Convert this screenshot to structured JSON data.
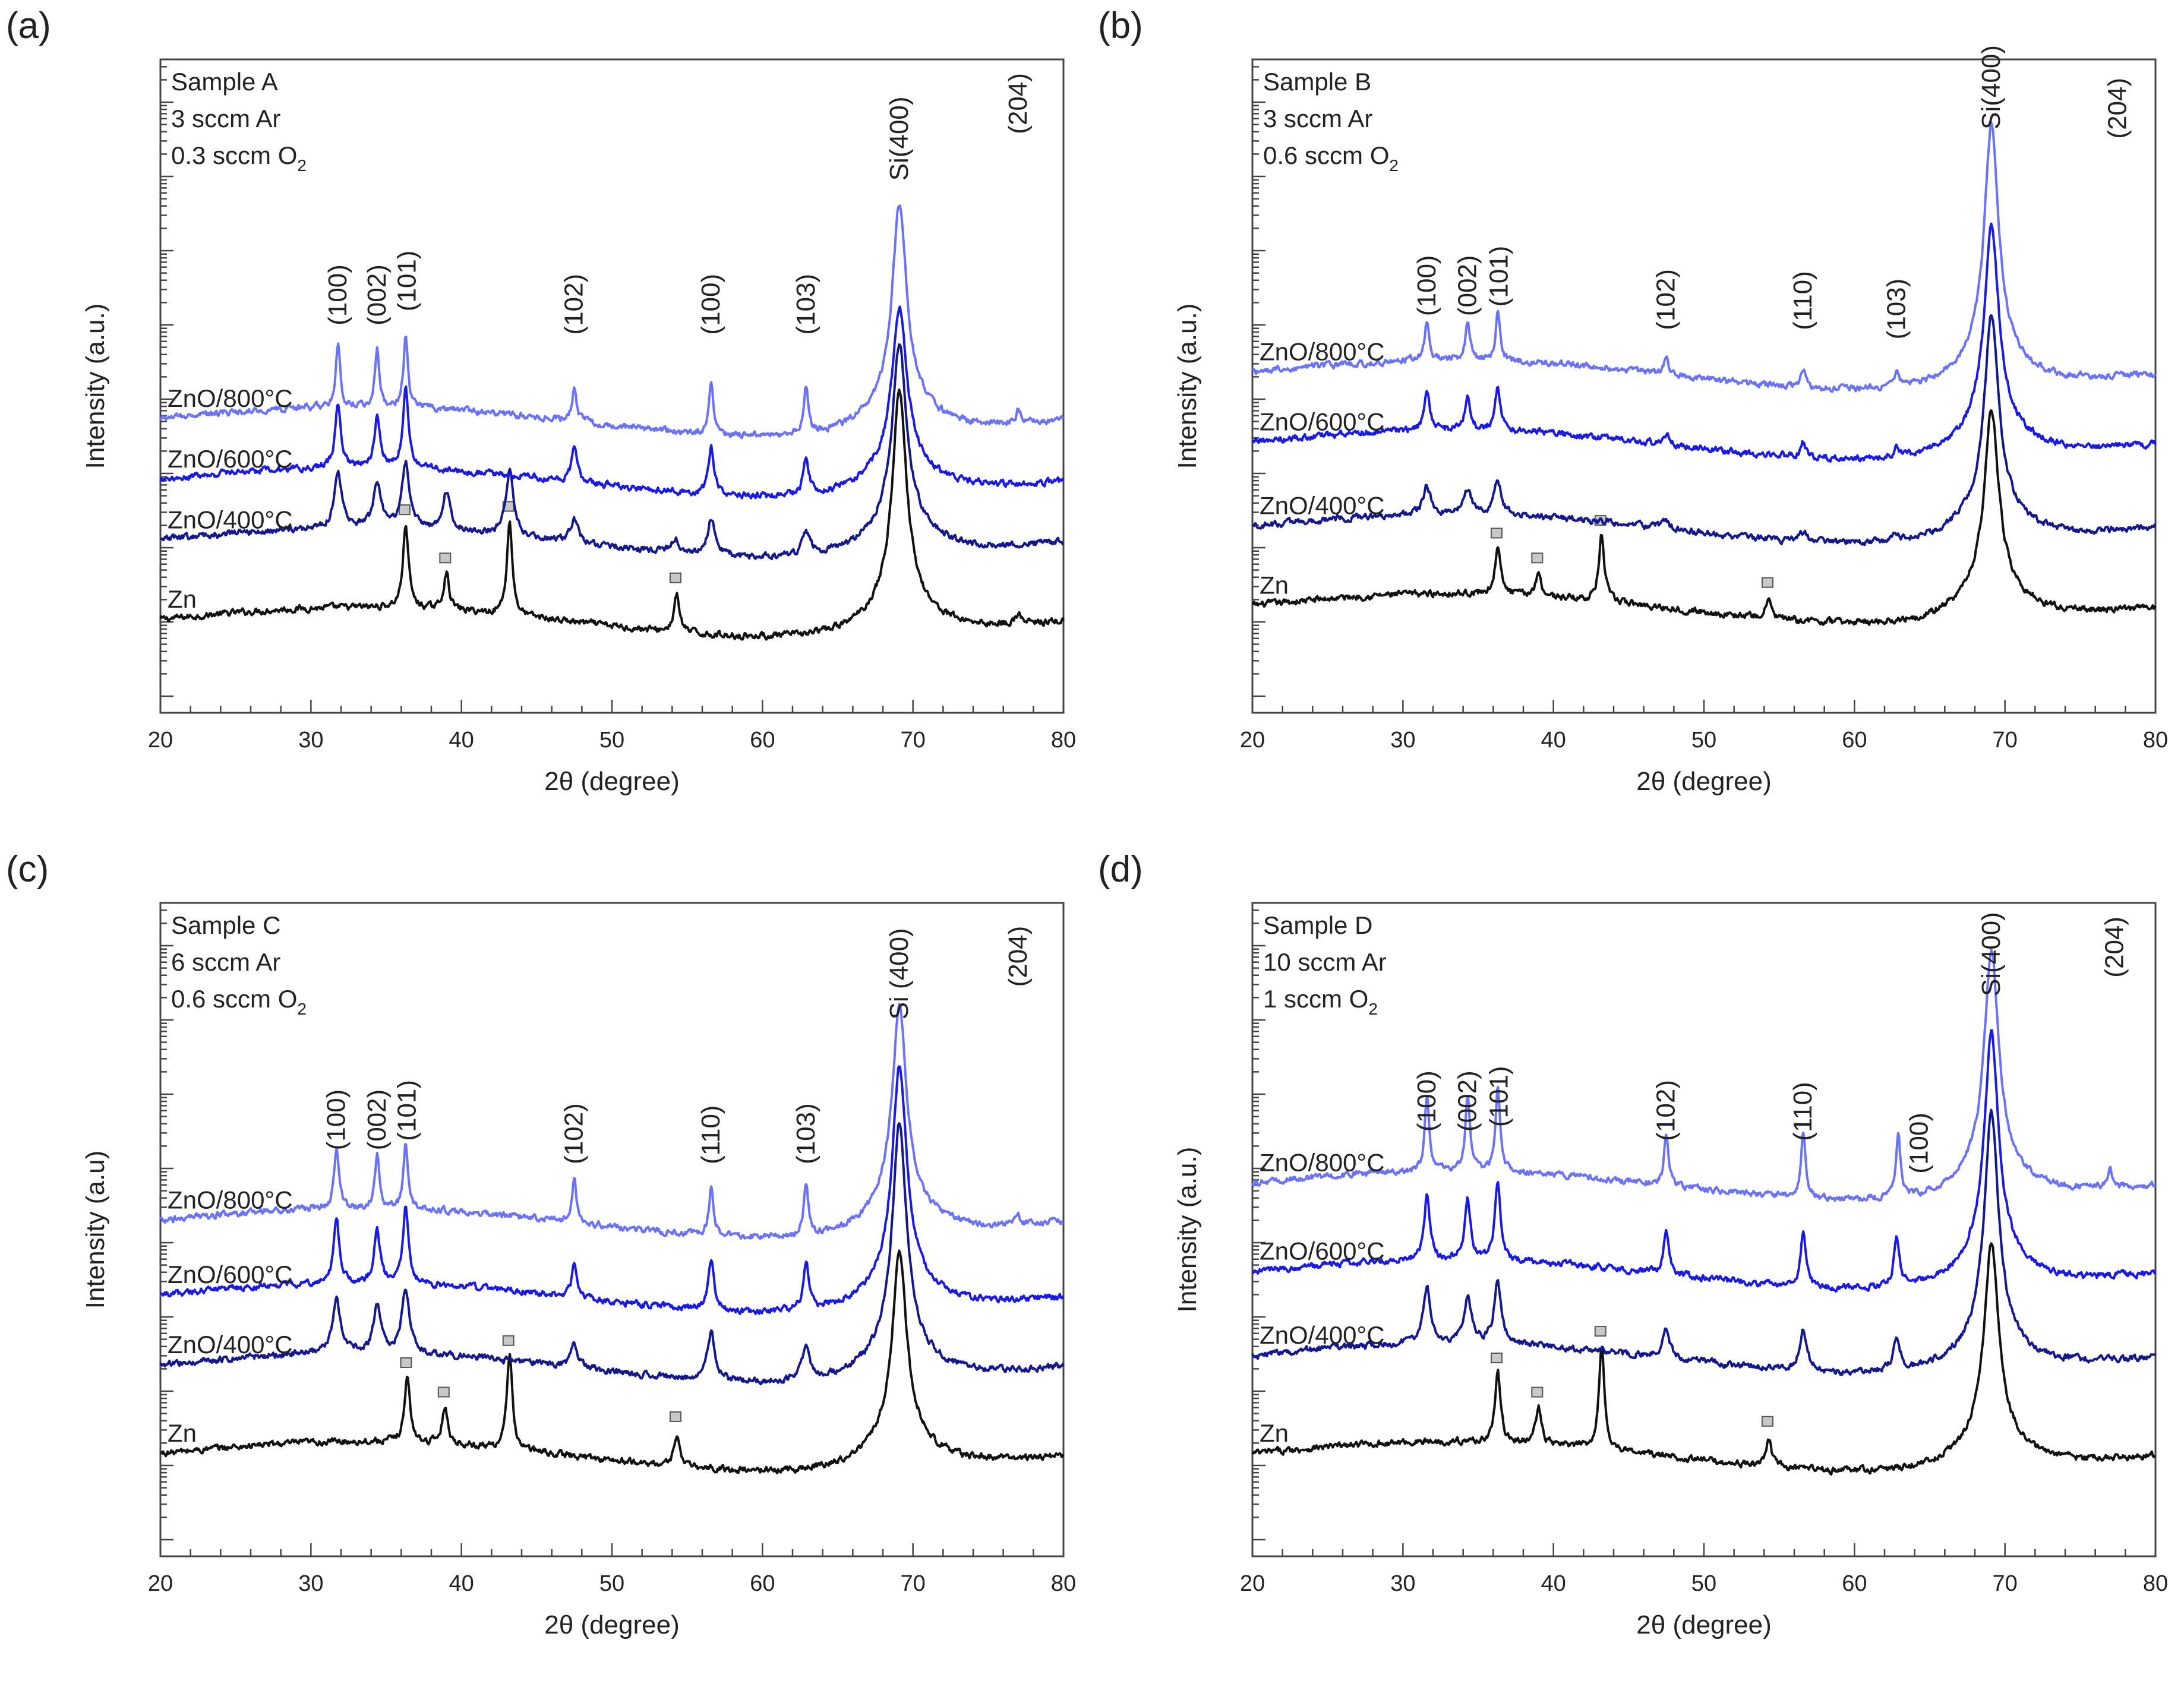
{
  "colors": {
    "zn": "#111111",
    "zno400": "#13188e",
    "zno600": "#1a1ae6",
    "zno800": "#6a72f8",
    "frame": "#444444",
    "marker_fill": "#c8c8c8",
    "marker_stroke": "#555555"
  },
  "chart_data": [
    {
      "type": "line",
      "panel_label": "(a)",
      "sample_lines": [
        "Sample A",
        "3 sccm Ar",
        "0.3 sccm O",
        "2"
      ],
      "xlabel": "2θ (degree)",
      "ylabel": "Intensity (a.u.)",
      "xlim": [
        20,
        80
      ],
      "xticks": [
        "20",
        "30",
        "40",
        "50",
        "60",
        "70",
        "80"
      ],
      "yscale": "log (offset, unlabeled)",
      "series": [
        {
          "name": "Zn",
          "color_key": "zn",
          "baseline": [
            20,
            78
          ],
          "peaks": [
            [
              36.3,
              18
            ],
            [
              39.0,
              8
            ],
            [
              43.2,
              20
            ],
            [
              54.3,
              8
            ],
            [
              69.1,
              44
            ],
            [
              77.0,
              2
            ]
          ],
          "markers": [
            36.3,
            39.0,
            43.2,
            54.3
          ]
        },
        {
          "name": "ZnO/400°C",
          "color_key": "zno400",
          "baseline": [
            37,
            92
          ],
          "peaks": [
            [
              31.8,
              12
            ],
            [
              34.4,
              9
            ],
            [
              36.3,
              14
            ],
            [
              39.0,
              8
            ],
            [
              43.2,
              14
            ],
            [
              47.5,
              5
            ],
            [
              54.2,
              3
            ],
            [
              56.6,
              8
            ],
            [
              62.9,
              5
            ],
            [
              69.1,
              37
            ]
          ]
        },
        {
          "name": "ZnO/600°C",
          "color_key": "zno600",
          "baseline": [
            50,
            105
          ],
          "peaks": [
            [
              31.8,
              14
            ],
            [
              34.4,
              11
            ],
            [
              36.3,
              17
            ],
            [
              47.5,
              8
            ],
            [
              56.6,
              10
            ],
            [
              62.9,
              8
            ],
            [
              69.1,
              32
            ]
          ]
        },
        {
          "name": "ZnO/800°C",
          "color_key": "zno800",
          "baseline": [
            63,
            117
          ],
          "peaks": [
            [
              31.8,
              13
            ],
            [
              34.4,
              12
            ],
            [
              36.3,
              15
            ],
            [
              47.5,
              7
            ],
            [
              56.6,
              11
            ],
            [
              62.9,
              10
            ],
            [
              69.1,
              41
            ],
            [
              77.0,
              3
            ]
          ]
        }
      ],
      "annotations": [
        {
          "text": "(100)",
          "x": 31.8,
          "level": 83
        },
        {
          "text": "(002)",
          "x": 34.4,
          "level": 83
        },
        {
          "text": "(101)",
          "x": 36.4,
          "level": 86
        },
        {
          "text": "(102)",
          "x": 47.5,
          "level": 81
        },
        {
          "text": "(100)",
          "x": 56.6,
          "level": 81
        },
        {
          "text": "(103)",
          "x": 62.9,
          "level": 81
        },
        {
          "text": "Si(400)",
          "x": 69.1,
          "level": 114
        },
        {
          "text": "(204)",
          "x": 77.0,
          "level": 124
        }
      ]
    },
    {
      "type": "line",
      "panel_label": "(b)",
      "sample_lines": [
        "Sample B",
        "3 sccm Ar",
        "0.6 sccm O",
        "2"
      ],
      "xlabel": "2θ (degree)",
      "ylabel": "Intensity (a.u.)",
      "xlim": [
        20,
        80
      ],
      "xticks": [
        "20",
        "30",
        "40",
        "50",
        "60",
        "70",
        "80"
      ],
      "yscale": "log (offset, unlabeled)",
      "series": [
        {
          "name": "Zn",
          "color_key": "zn",
          "baseline": [
            23,
            78
          ],
          "peaks": [
            [
              36.3,
              10
            ],
            [
              39.0,
              5
            ],
            [
              43.2,
              14
            ],
            [
              54.3,
              4
            ],
            [
              69.1,
              37
            ]
          ],
          "markers": [
            36.3,
            39.0,
            43.2,
            54.3
          ]
        },
        {
          "name": "ZnO/400°C",
          "color_key": "zno400",
          "baseline": [
            40,
            93
          ],
          "peaks": [
            [
              31.6,
              6
            ],
            [
              34.3,
              5
            ],
            [
              36.3,
              7
            ],
            [
              47.5,
              1.5
            ],
            [
              56.6,
              2
            ],
            [
              62.8,
              1.5
            ],
            [
              69.1,
              40
            ]
          ]
        },
        {
          "name": "ZnO/600°C",
          "color_key": "zno600",
          "baseline": [
            58,
            105
          ],
          "peaks": [
            [
              31.6,
              8
            ],
            [
              34.3,
              7
            ],
            [
              36.3,
              9
            ],
            [
              47.5,
              2
            ],
            [
              56.6,
              3
            ],
            [
              62.8,
              2
            ],
            [
              69.1,
              42
            ]
          ]
        },
        {
          "name": "ZnO/800°C",
          "color_key": "zno800",
          "baseline": [
            73,
            119
          ],
          "peaks": [
            [
              31.6,
              8
            ],
            [
              34.3,
              8
            ],
            [
              36.3,
              10
            ],
            [
              47.5,
              4
            ],
            [
              56.6,
              4
            ],
            [
              62.8,
              3
            ],
            [
              69.1,
              48
            ],
            [
              77.5,
              1
            ]
          ]
        }
      ],
      "annotations": [
        {
          "text": "(100)",
          "x": 31.6,
          "level": 85
        },
        {
          "text": "(002)",
          "x": 34.3,
          "level": 85
        },
        {
          "text": "(101)",
          "x": 36.4,
          "level": 87
        },
        {
          "text": "(102)",
          "x": 47.5,
          "level": 82
        },
        {
          "text": "(110)",
          "x": 56.6,
          "level": 82
        },
        {
          "text": "(103)",
          "x": 62.8,
          "level": 80
        },
        {
          "text": "Si(400)",
          "x": 69.1,
          "level": 125
        },
        {
          "text": "(204)",
          "x": 77.5,
          "level": 123
        }
      ]
    },
    {
      "type": "line",
      "panel_label": "(c)",
      "sample_lines": [
        "Sample C",
        "6 sccm Ar",
        "0.6 sccm O",
        "2"
      ],
      "xlabel": "2θ (degree)",
      "ylabel": "Intensity (a.u)",
      "xlim": [
        20,
        80
      ],
      "xticks": [
        "20",
        "30",
        "40",
        "50",
        "60",
        "70",
        "80"
      ],
      "yscale": "log (offset, unlabeled)",
      "series": [
        {
          "name": "Zn",
          "color_key": "zn",
          "baseline": [
            22,
            78
          ],
          "peaks": [
            [
              36.4,
              14
            ],
            [
              38.9,
              8
            ],
            [
              43.2,
              20
            ],
            [
              54.3,
              7
            ],
            [
              69.1,
              38
            ]
          ],
          "markers": [
            36.4,
            38.9,
            43.2,
            54.3
          ]
        },
        {
          "name": "ZnO/400°C",
          "color_key": "zno400",
          "baseline": [
            41,
            93
          ],
          "peaks": [
            [
              31.7,
              12
            ],
            [
              34.4,
              10
            ],
            [
              36.3,
              14
            ],
            [
              47.5,
              5
            ],
            [
              56.6,
              10
            ],
            [
              62.9,
              7
            ],
            [
              69.1,
              47
            ]
          ]
        },
        {
          "name": "ZnO/600°C",
          "color_key": "zno600",
          "baseline": [
            56,
            108
          ],
          "peaks": [
            [
              31.7,
              14
            ],
            [
              34.4,
              12
            ],
            [
              36.3,
              16
            ],
            [
              47.5,
              7
            ],
            [
              56.6,
              11
            ],
            [
              62.9,
              10
            ],
            [
              69.1,
              44
            ]
          ]
        },
        {
          "name": "ZnO/800°C",
          "color_key": "zno800",
          "baseline": [
            72,
            117
          ],
          "peaks": [
            [
              31.7,
              13
            ],
            [
              34.4,
              11
            ],
            [
              36.3,
              14
            ],
            [
              47.5,
              9
            ],
            [
              56.6,
              11
            ],
            [
              62.9,
              11
            ],
            [
              69.1,
              41
            ],
            [
              77.0,
              2
            ]
          ]
        }
      ],
      "annotations": [
        {
          "text": "(100)",
          "x": 31.7,
          "level": 87
        },
        {
          "text": "(002)",
          "x": 34.4,
          "level": 87
        },
        {
          "text": "(101)",
          "x": 36.4,
          "level": 89
        },
        {
          "text": "(102)",
          "x": 47.5,
          "level": 84
        },
        {
          "text": "(110)",
          "x": 56.6,
          "level": 84
        },
        {
          "text": "(103)",
          "x": 62.9,
          "level": 84
        },
        {
          "text": "Si (400)",
          "x": 69.1,
          "level": 115
        },
        {
          "text": "(204)",
          "x": 77.0,
          "level": 122
        }
      ]
    },
    {
      "type": "line",
      "panel_label": "(d)",
      "sample_lines": [
        "Sample D",
        "10 sccm Ar",
        "1 sccm O",
        "2"
      ],
      "xlabel": "2θ (degree)",
      "ylabel": "Intensity (a.u.)",
      "xlim": [
        20,
        80
      ],
      "xticks": [
        "20",
        "30",
        "40",
        "50",
        "60",
        "70",
        "80"
      ],
      "yscale": "log (offset, unlabeled)",
      "series": [
        {
          "name": "Zn",
          "color_key": "zn",
          "baseline": [
            22,
            78
          ],
          "peaks": [
            [
              36.3,
              15
            ],
            [
              39.0,
              8
            ],
            [
              43.2,
              22
            ],
            [
              54.3,
              6
            ],
            [
              69.1,
              40
            ]
          ],
          "markers": [
            36.3,
            39.0,
            43.2,
            54.3
          ]
        },
        {
          "name": "ZnO/400°C",
          "color_key": "zno400",
          "baseline": [
            43,
            93
          ],
          "peaks": [
            [
              31.6,
              12
            ],
            [
              34.3,
              10
            ],
            [
              36.3,
              13
            ],
            [
              47.5,
              6
            ],
            [
              56.6,
              9
            ],
            [
              62.8,
              6
            ],
            [
              69.1,
              47
            ]
          ]
        },
        {
          "name": "ZnO/600°C",
          "color_key": "zno600",
          "baseline": [
            61,
            108
          ],
          "peaks": [
            [
              31.6,
              14
            ],
            [
              34.3,
              13
            ],
            [
              36.3,
              17
            ],
            [
              47.5,
              9
            ],
            [
              56.6,
              12
            ],
            [
              62.8,
              10
            ],
            [
              69.1,
              46
            ]
          ]
        },
        {
          "name": "ZnO/800°C",
          "color_key": "zno800",
          "baseline": [
            80,
            122
          ],
          "peaks": [
            [
              31.6,
              16
            ],
            [
              34.3,
              16
            ],
            [
              36.3,
              18
            ],
            [
              47.5,
              11
            ],
            [
              56.6,
              14
            ],
            [
              62.9,
              14
            ],
            [
              69.1,
              45
            ],
            [
              77.0,
              4
            ]
          ]
        }
      ],
      "annotations": [
        {
          "text": "(100)",
          "x": 31.6,
          "level": 91
        },
        {
          "text": "(002)",
          "x": 34.3,
          "level": 91
        },
        {
          "text": "(101)",
          "x": 36.4,
          "level": 92
        },
        {
          "text": "(102)",
          "x": 47.5,
          "level": 89
        },
        {
          "text": "(110)",
          "x": 56.6,
          "level": 89
        },
        {
          "text": "(100)",
          "x": 64.3,
          "level": 82
        },
        {
          "text": "Si(400)",
          "x": 69.1,
          "level": 120
        },
        {
          "text": "(204)",
          "x": 77.3,
          "level": 124
        }
      ]
    }
  ]
}
